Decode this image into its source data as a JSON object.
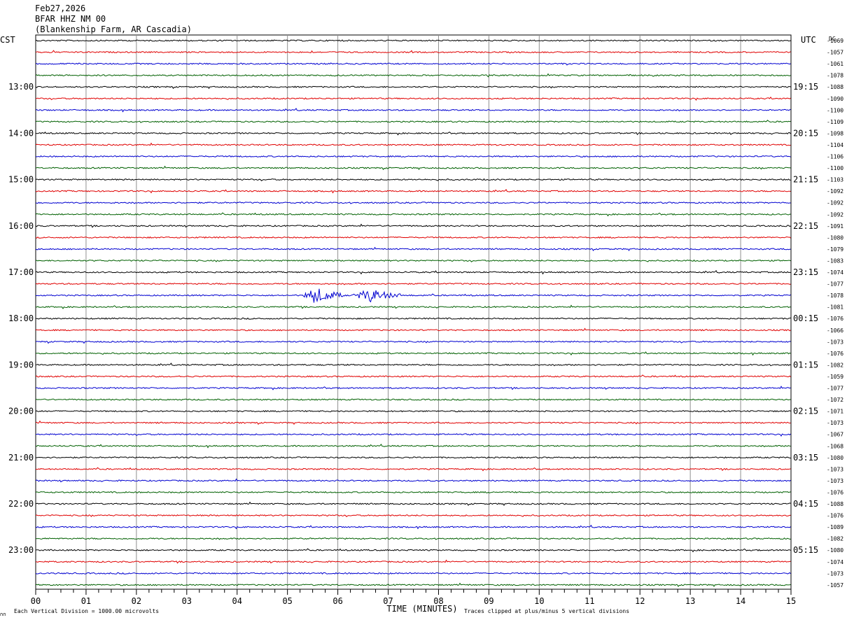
{
  "header": {
    "date": "Feb27,2026",
    "station": "BFAR HHZ NM 00",
    "location": "(Blankenship Farm, AR Cascadia)"
  },
  "chart_data": {
    "type": "line",
    "title": "Feb27,2026",
    "left_axis_label": "CST",
    "right_axis_label": "UTC",
    "dc_label": "DC",
    "xlabel": "TIME (MINUTES)",
    "xlim": [
      0,
      15
    ],
    "x_ticks": [
      "00",
      "01",
      "02",
      "03",
      "04",
      "05",
      "06",
      "07",
      "08",
      "09",
      "10",
      "11",
      "12",
      "13",
      "14",
      "15"
    ],
    "trace_colors": [
      "#000000",
      "#e00000",
      "#0000d0",
      "#006000"
    ],
    "left_time_labels": [
      {
        "row": 4,
        "label": "13:00"
      },
      {
        "row": 8,
        "label": "14:00"
      },
      {
        "row": 12,
        "label": "15:00"
      },
      {
        "row": 16,
        "label": "16:00"
      },
      {
        "row": 20,
        "label": "17:00"
      },
      {
        "row": 24,
        "label": "18:00"
      },
      {
        "row": 28,
        "label": "19:00"
      },
      {
        "row": 32,
        "label": "20:00"
      },
      {
        "row": 36,
        "label": "21:00"
      },
      {
        "row": 40,
        "label": "22:00"
      },
      {
        "row": 44,
        "label": "23:00"
      }
    ],
    "right_time_labels": [
      {
        "row": 4,
        "label": "19:15"
      },
      {
        "row": 8,
        "label": "20:15"
      },
      {
        "row": 12,
        "label": "21:15"
      },
      {
        "row": 16,
        "label": "22:15"
      },
      {
        "row": 20,
        "label": "23:15"
      },
      {
        "row": 24,
        "label": "00:15"
      },
      {
        "row": 28,
        "label": "01:15"
      },
      {
        "row": 32,
        "label": "02:15"
      },
      {
        "row": 36,
        "label": "03:15"
      },
      {
        "row": 40,
        "label": "04:15"
      },
      {
        "row": 44,
        "label": "05:15"
      }
    ],
    "dc_offsets": [
      "-1069",
      "-1057",
      "-1061",
      "-1078",
      "-1088",
      "-1090",
      "-1100",
      "-1109",
      "-1098",
      "-1104",
      "-1106",
      "-1100",
      "-1103",
      "-1092",
      "-1092",
      "-1092",
      "-1091",
      "-1080",
      "-1079",
      "-1083",
      "-1074",
      "-1077",
      "-1078",
      "-1081",
      "-1076",
      "-1066",
      "-1073",
      "-1076",
      "-1082",
      "-1059",
      "-1077",
      "-1072",
      "-1071",
      "-1073",
      "-1067",
      "-1068",
      "-1080",
      "-1073",
      "-1073",
      "-1076",
      "-1088",
      "-1076",
      "-1089",
      "-1082",
      "-1080",
      "-1074",
      "-1073",
      "-1057"
    ],
    "events": [
      {
        "row": 22,
        "start_min": 5.3,
        "end_min": 6.1,
        "peak_min": 5.55,
        "amplitude_div": 1.4
      },
      {
        "row": 22,
        "start_min": 6.3,
        "end_min": 7.25,
        "peak_min": 6.65,
        "amplitude_div": 1.1
      }
    ],
    "grid": true
  },
  "footer": {
    "scale_note": "Each Vertical Division = 1000.00 microvolts",
    "clip_note": "Traces clipped at plus/minus 5 vertical divisions",
    "corner_mark": "∩∩"
  }
}
